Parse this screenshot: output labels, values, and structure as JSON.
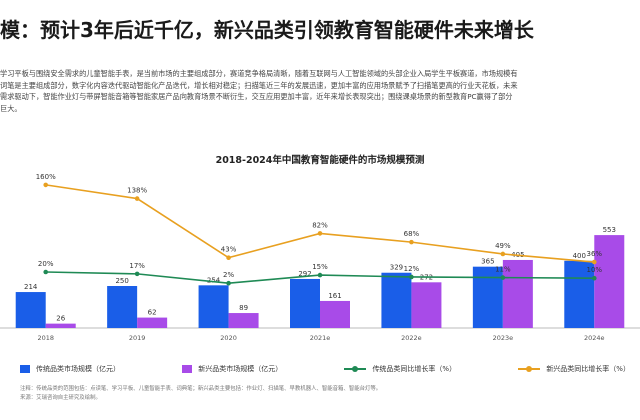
{
  "header": {
    "title": "模：预计3年后近千亿，新兴品类引领教育智能硬件未来增长"
  },
  "body": {
    "paragraphs": [
      "学习平板与围绕安全需求的儿童智能手表，是当前市场的主要组成部分，赛道竞争格局清晰，随着互联网与人工智能领域的头部企业入局学生平板赛道，市场规模有",
      "词笔是主要组成部分，数字化内容迭代驱动智能化产品迭代，增长相对稳定；扫描笔近三年的发展迅速，更加丰富的应用场景赋予了扫描笔更高的行业天花板，未来",
      "需求驱动下，智能作业灯与带屏智能音箱等智能家居产品向教育场景不断衍生，交互应用更加丰富，近年来增长表现突出；围绕课桌场景的新型教育PC赢得了部分",
      "巨大。"
    ]
  },
  "chart_data": {
    "type": "bar",
    "title": "2018-2024年中国教育智能硬件的市场规模预测",
    "categories": [
      "2018",
      "2019",
      "2020",
      "2021e",
      "2022e",
      "2023e",
      "2024e"
    ],
    "series": [
      {
        "name": "传统品类市场规模（亿元）",
        "kind": "bar",
        "color": "#1a5ee8",
        "values": [
          214,
          250,
          254,
          292,
          329,
          365,
          400
        ]
      },
      {
        "name": "新兴品类市场规模（亿元）",
        "kind": "bar",
        "color": "#a84be8",
        "values": [
          26,
          62,
          89,
          161,
          272,
          405,
          553
        ]
      },
      {
        "name": "传统品类同比增长率（%）",
        "kind": "line",
        "color": "#1f8a55",
        "values": [
          20,
          17,
          2,
          15,
          12,
          11,
          10
        ]
      },
      {
        "name": "新兴品类同比增长率（%）",
        "kind": "line",
        "color": "#e8a020",
        "values": [
          160,
          138,
          43,
          82,
          68,
          49,
          36
        ]
      }
    ],
    "bar_ylim": [
      0,
      1000
    ],
    "line_ylim": [
      -70,
      200
    ],
    "value_labels": {
      "bar_traditional": [
        "214",
        "250",
        "254",
        "292",
        "329",
        "365",
        "400"
      ],
      "bar_emerging": [
        "26",
        "62",
        "89",
        "161",
        "272",
        "405",
        "553"
      ],
      "line_traditional": [
        "20%",
        "17%",
        "2%",
        "15%",
        "12%",
        "11%",
        "10%"
      ],
      "line_emerging": [
        "160%",
        "138%",
        "43%",
        "82%",
        "68%",
        "49%",
        "36%"
      ]
    }
  },
  "notes": [
    "注释：传统品类的范围包括：点读笔、学习平板、儿童智能手表、词典笔；新兴品类主要包括：作业灯、扫描笔、早教机器人、智能音箱、智能台灯等。",
    "来源：艾瑞咨询自主研究及绘制。"
  ]
}
